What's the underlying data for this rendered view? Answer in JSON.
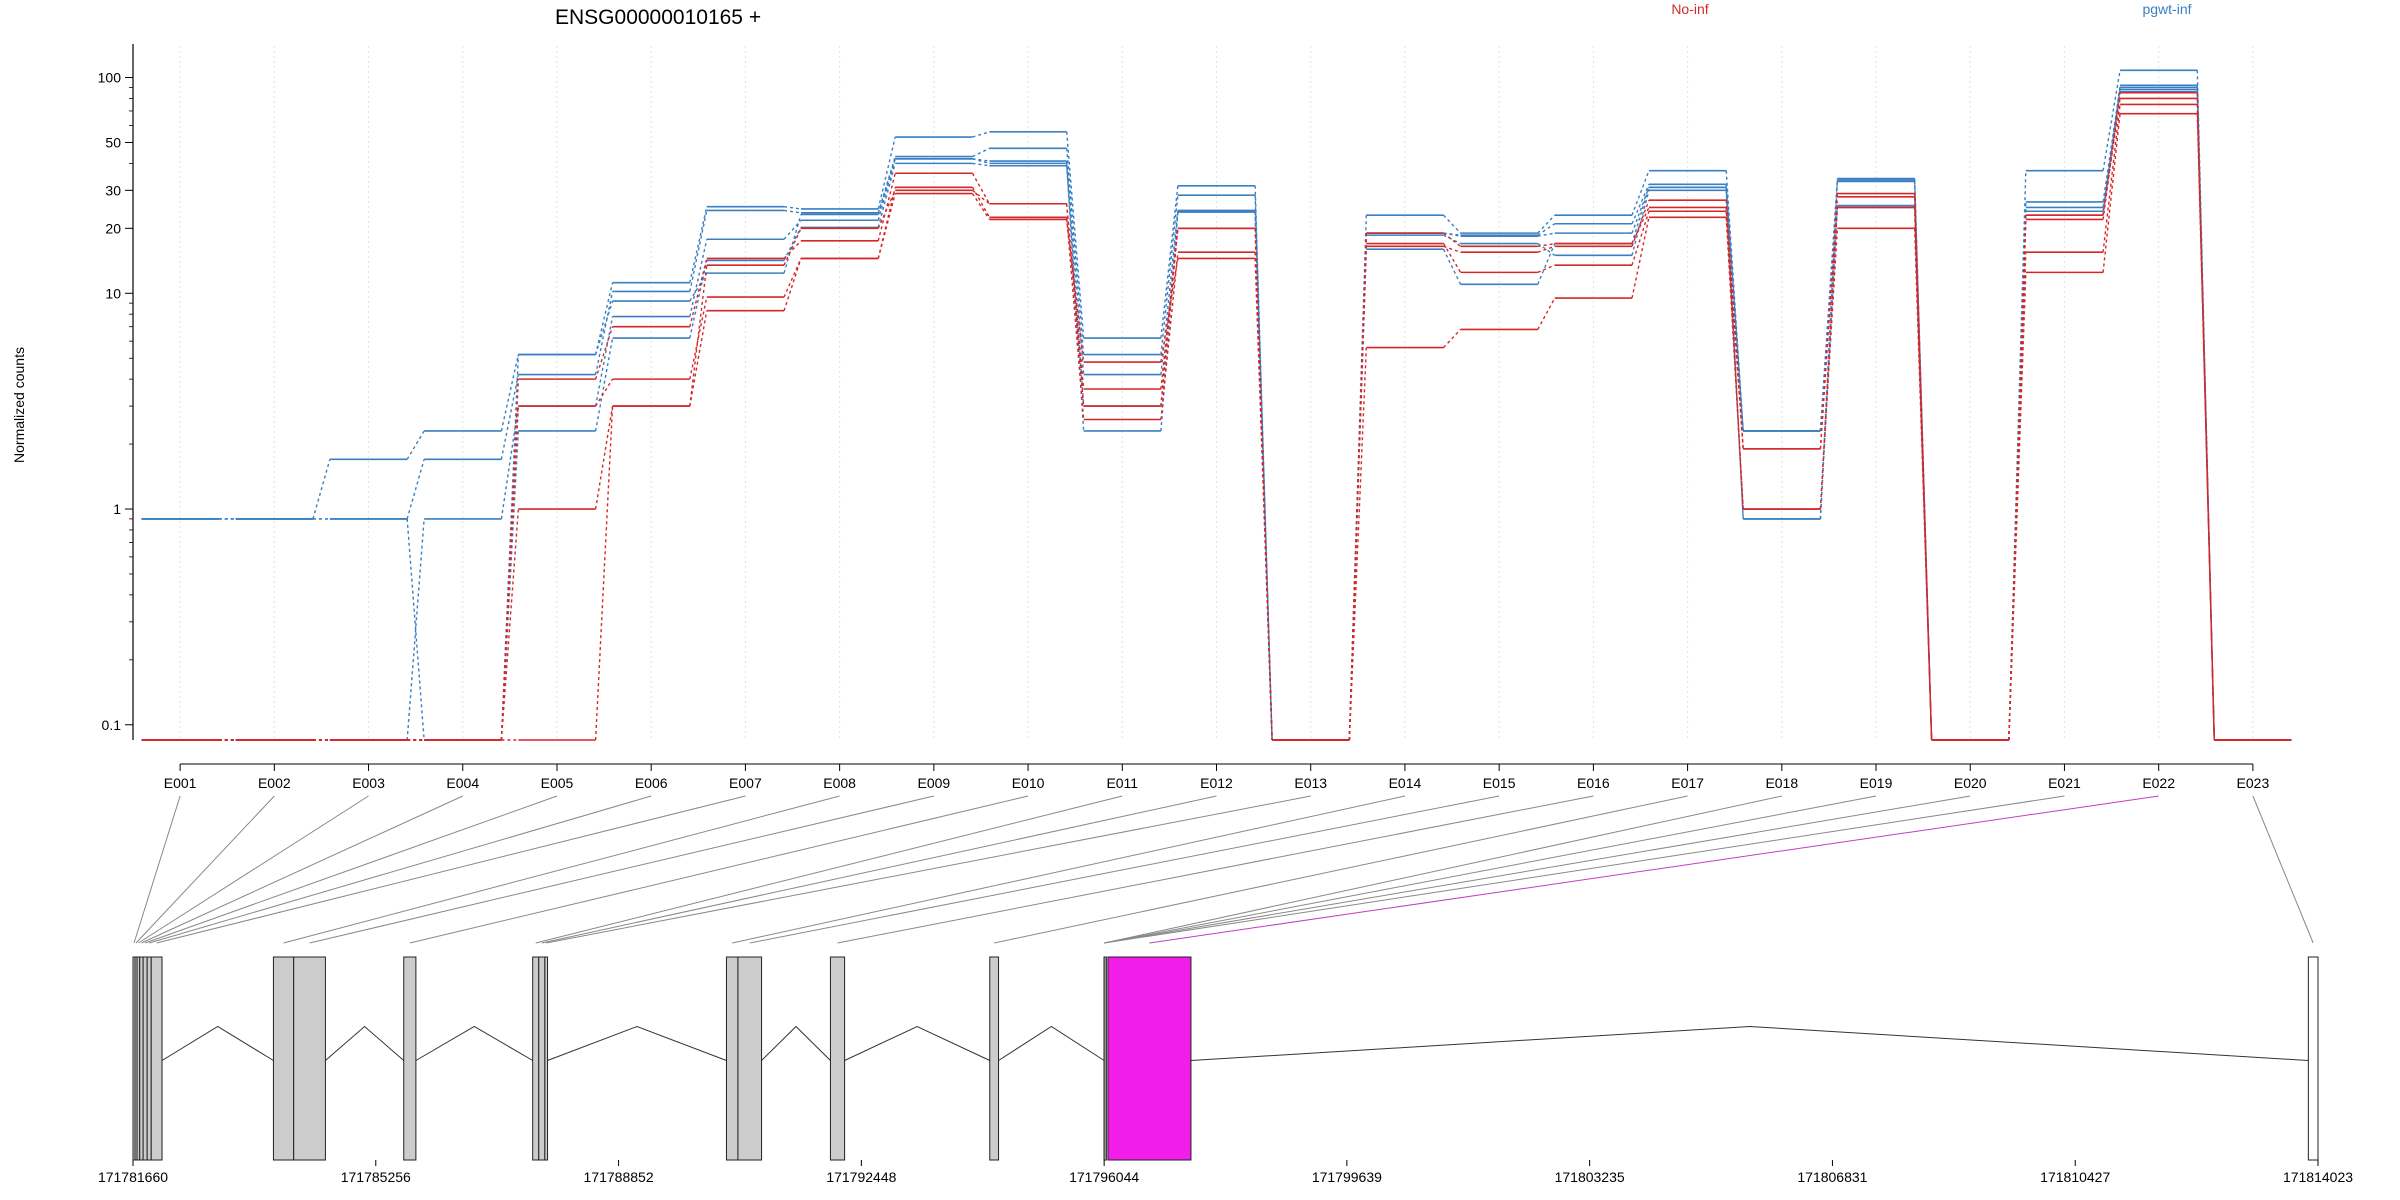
{
  "chart_data": {
    "type": "line",
    "title": "ENSG00000010165 +",
    "ylabel": "Normalized counts",
    "yscale": "log",
    "ylim": [
      0.085,
      140
    ],
    "yticks": [
      "0.1",
      "1",
      "10",
      "20",
      "30",
      "50",
      "100"
    ],
    "yticks_values": [
      0.1,
      1,
      10,
      20,
      30,
      50,
      100
    ],
    "categories": [
      "E001",
      "E002",
      "E003",
      "E004",
      "E005",
      "E006",
      "E007",
      "E008",
      "E009",
      "E010",
      "E011",
      "E012",
      "E013",
      "E014",
      "E015",
      "E016",
      "E017",
      "E018",
      "E019",
      "E020",
      "E021",
      "E022",
      "E023"
    ],
    "legend": [
      {
        "label": "No-inf",
        "color": "#d62728"
      },
      {
        "label": "pgwt-inf",
        "color": "#3a7fc1"
      }
    ],
    "series": [
      {
        "group": "pgwt-inf",
        "values": [
          0.9,
          0.9,
          1.7,
          2.3,
          5.2,
          11.2,
          25.2,
          24.6,
          53,
          56,
          6.2,
          31.5,
          0.085,
          23,
          19,
          23,
          37,
          2.3,
          34,
          0.085,
          37,
          108,
          0.085
        ]
      },
      {
        "group": "pgwt-inf",
        "values": [
          0.9,
          0.9,
          0.9,
          1.7,
          4.2,
          10.2,
          24.2,
          23.6,
          43,
          47,
          5.2,
          28.5,
          0.085,
          19,
          18.6,
          21,
          32,
          2.3,
          33,
          0.085,
          26.5,
          90,
          0.085
        ]
      },
      {
        "group": "pgwt-inf",
        "values": [
          0.085,
          0.085,
          0.085,
          0.9,
          3.0,
          7.8,
          17.8,
          21.8,
          42,
          41,
          4.2,
          24.2,
          0.085,
          16,
          11,
          17,
          31,
          0.9,
          33.5,
          0.085,
          24,
          88,
          0.085
        ]
      },
      {
        "group": "pgwt-inf",
        "values": [
          0.085,
          0.085,
          0.085,
          0.085,
          2.3,
          6.2,
          14.2,
          20.2,
          40,
          39,
          3.0,
          24,
          0.085,
          18.6,
          17,
          15,
          30,
          0.9,
          25.5,
          0.085,
          25,
          86,
          0.085
        ]
      },
      {
        "group": "pgwt-inf",
        "values": [
          0.9,
          0.9,
          0.9,
          0.085,
          5.2,
          9.2,
          12.4,
          23.2,
          42,
          40,
          2.3,
          23.8,
          0.085,
          19,
          18.4,
          19,
          31,
          2.3,
          25,
          0.085,
          23,
          92,
          0.085
        ]
      },
      {
        "group": "No-inf",
        "values": [
          0.085,
          0.085,
          0.085,
          0.085,
          4.0,
          7.0,
          14.5,
          17.5,
          36,
          26,
          3.6,
          20,
          0.085,
          16.5,
          15.5,
          16.5,
          27,
          1.9,
          28,
          0.085,
          22,
          85,
          0.085
        ]
      },
      {
        "group": "No-inf",
        "values": [
          0.085,
          0.085,
          0.085,
          0.085,
          3.0,
          4.0,
          9.6,
          14.5,
          31,
          22.5,
          2.6,
          15.5,
          0.085,
          19,
          16.5,
          17,
          25,
          1.0,
          25,
          0.085,
          15.5,
          75,
          0.085
        ]
      },
      {
        "group": "No-inf",
        "values": [
          0.085,
          0.085,
          0.085,
          0.085,
          1.0,
          3.0,
          8.3,
          14.5,
          29,
          22,
          4.8,
          14.5,
          0.085,
          5.6,
          6.8,
          9.5,
          22.5,
          1.0,
          20,
          0.085,
          12.5,
          68,
          0.085
        ]
      },
      {
        "group": "No-inf",
        "values": [
          0.085,
          0.085,
          0.085,
          0.085,
          0.085,
          3.0,
          13.5,
          20,
          30,
          26,
          3.0,
          20,
          0.085,
          17,
          12.5,
          13.5,
          24,
          1.9,
          29,
          0.085,
          23,
          80,
          0.085
        ]
      }
    ],
    "gene_model": {
      "coordinate_labels": [
        "171781660",
        "171785256",
        "171788852",
        "171792448",
        "171796044",
        "171799639",
        "171803235",
        "171806831",
        "171810427",
        "171814023"
      ],
      "coordinate_values": [
        171781660,
        171785256,
        171788852,
        171792448,
        171796044,
        171799639,
        171803235,
        171806831,
        171810427,
        171814023
      ],
      "highlight_exon": "E022",
      "highlight_color": "#f01ee8",
      "exon_color": "#cccccc",
      "exons": [
        {
          "id": "E001",
          "start": 171781660,
          "end": 171781690
        },
        {
          "id": "E002",
          "start": 171781690,
          "end": 171781720
        },
        {
          "id": "E003",
          "start": 171781720,
          "end": 171781760
        },
        {
          "id": "E004",
          "start": 171781760,
          "end": 171781810
        },
        {
          "id": "E005",
          "start": 171781810,
          "end": 171781870
        },
        {
          "id": "E006",
          "start": 171781870,
          "end": 171781930
        },
        {
          "id": "E007",
          "start": 171781930,
          "end": 171782090
        },
        {
          "id": "E008",
          "start": 171783740,
          "end": 171784040
        },
        {
          "id": "E009",
          "start": 171784040,
          "end": 171784510
        },
        {
          "id": "E010",
          "start": 171785670,
          "end": 171785850
        },
        {
          "id": "E011",
          "start": 171787580,
          "end": 171787670
        },
        {
          "id": "E012",
          "start": 171787670,
          "end": 171787760
        },
        {
          "id": "E013",
          "start": 171787760,
          "end": 171787800
        },
        {
          "id": "E014",
          "start": 171790450,
          "end": 171790620
        },
        {
          "id": "E015",
          "start": 171790620,
          "end": 171790970
        },
        {
          "id": "E016",
          "start": 171791990,
          "end": 171792200
        },
        {
          "id": "E017",
          "start": 171794350,
          "end": 171794480
        },
        {
          "id": "E018",
          "start": 171796044,
          "end": 171796045
        },
        {
          "id": "E019",
          "start": 171796044,
          "end": 171796045
        },
        {
          "id": "E020",
          "start": 171796044,
          "end": 171796045
        },
        {
          "id": "E021",
          "start": 171796044,
          "end": 171796045
        },
        {
          "id": "E022",
          "start": 171796100,
          "end": 171797330
        },
        {
          "id": "E023",
          "start": 171813880,
          "end": 171814023
        }
      ]
    }
  }
}
